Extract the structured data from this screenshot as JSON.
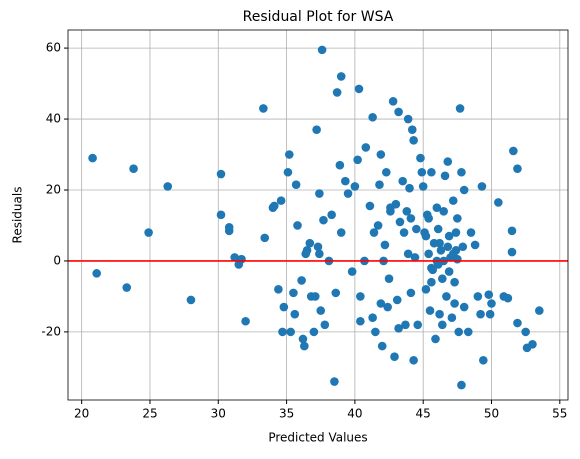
{
  "chart_data": {
    "type": "scatter",
    "title": "Residual Plot for WSA",
    "xlabel": "Predicted Values",
    "ylabel": "Residuals",
    "xlim": [
      19,
      55.6
    ],
    "ylim": [
      -39.2,
      65.1
    ],
    "xticks": [
      20,
      25,
      30,
      35,
      40,
      45,
      50,
      55
    ],
    "yticks": [
      -20,
      0,
      20,
      40,
      60
    ],
    "grid": true,
    "hline": {
      "value": 0,
      "color": "#ff0000"
    },
    "series": [
      {
        "color": "#1f77b4",
        "x": [
          20.8,
          21.1,
          23.3,
          23.8,
          24.9,
          26.3,
          28,
          30.2,
          30.2,
          30.8,
          30.8,
          31.2,
          31.5,
          31.7,
          32,
          33.3,
          33.4,
          34,
          34.1,
          34.4,
          34.6,
          34.7,
          34.8,
          35.1,
          35.2,
          35.3,
          35.5,
          35.6,
          35.7,
          35.8,
          36.1,
          36.2,
          36.3,
          36.4,
          36.5,
          36.7,
          36.8,
          37,
          37.1,
          37.2,
          37.3,
          37.4,
          37.4,
          37.5,
          37.6,
          37.7,
          37.8,
          38.1,
          38.3,
          38.5,
          38.6,
          38.7,
          38.9,
          39,
          39,
          39.3,
          39.5,
          39.8,
          40,
          40.2,
          40.3,
          40.4,
          40.4,
          40.7,
          40.8,
          41.1,
          41.3,
          41.3,
          41.4,
          41.5,
          41.7,
          41.8,
          41.9,
          42,
          42.1,
          42.2,
          42.3,
          42.4,
          42.5,
          42.6,
          42.8,
          42.9,
          43,
          43.1,
          43.2,
          43.3,
          43.5,
          43.6,
          43.7,
          43.8,
          43.9,
          44,
          44.1,
          44.2,
          44.3,
          44.3,
          44.4,
          44.5,
          44.6,
          44.8,
          44.9,
          45,
          45.1,
          45.2,
          45.3,
          45.4,
          45.5,
          45.6,
          45.6,
          45.8,
          45.9,
          46,
          46.1,
          46.2,
          46.3,
          46.4,
          46.5,
          46.6,
          46.7,
          46.8,
          46.9,
          47,
          47.1,
          47.2,
          47.3,
          47.4,
          47.5,
          47.6,
          47.7,
          47.8,
          47.8,
          47.9,
          48,
          48,
          48.3,
          48.5,
          48.8,
          49,
          49.2,
          49.3,
          49.4,
          49.8,
          49.9,
          50,
          50.5,
          50.9,
          51.2,
          51.5,
          51.5,
          51.6,
          51.9,
          51.9,
          52.5,
          52.6,
          53,
          53.5,
          45.7,
          46.2,
          46.5,
          46.9,
          47.2,
          45.4,
          46,
          47.4,
          46.8,
          45.6,
          47.3,
          46.4,
          44.1,
          43.2,
          43.9,
          42.6,
          41.9,
          47.5,
          46.1,
          45.2
        ],
        "y": [
          29,
          -3.5,
          -7.5,
          26,
          8,
          21,
          -11,
          24.5,
          13,
          9.5,
          8.5,
          1,
          -1,
          0.5,
          -17,
          43,
          6.5,
          15,
          15.5,
          -8,
          17,
          -20,
          -13,
          25,
          30,
          -20,
          -9,
          -15,
          21.5,
          10,
          -5.5,
          -22,
          -24,
          2,
          3,
          5,
          -10,
          -20,
          -10,
          37,
          4,
          19,
          2,
          -14,
          59.5,
          11.5,
          -18,
          0,
          13,
          -34,
          -9,
          47.5,
          27,
          52,
          8,
          22.5,
          19,
          -3,
          21,
          28.5,
          48.5,
          -10,
          -17,
          0,
          32,
          15.5,
          40.5,
          -16,
          8,
          -20,
          10,
          21.5,
          30,
          -24,
          0,
          4.5,
          25,
          -13,
          -5,
          15,
          45,
          -27,
          16,
          -11,
          42,
          11,
          22.5,
          8,
          -18,
          14,
          40,
          20.5,
          12,
          37,
          -28,
          34,
          1,
          9,
          -18,
          29,
          25,
          21,
          8,
          -8,
          13,
          2,
          -14,
          25,
          -2,
          5,
          -22,
          0,
          9,
          -15,
          3,
          -5,
          14,
          24,
          -10,
          28,
          7,
          1,
          -16,
          17,
          -6,
          3,
          12,
          -20,
          43,
          -35,
          25,
          4,
          -13,
          20,
          -20,
          8,
          4.5,
          -10,
          -15,
          21,
          -28,
          -9.5,
          -15,
          -12,
          16.5,
          -10,
          -10.5,
          2.5,
          8.5,
          31,
          26,
          -17.5,
          -20,
          -24.5,
          -23.5,
          -14,
          -2.5,
          5,
          0,
          -3,
          2,
          12,
          15,
          8,
          4,
          -6,
          -12,
          -18,
          -9,
          -19,
          2,
          14,
          -12,
          0.5,
          -1,
          7
        ]
      }
    ]
  }
}
